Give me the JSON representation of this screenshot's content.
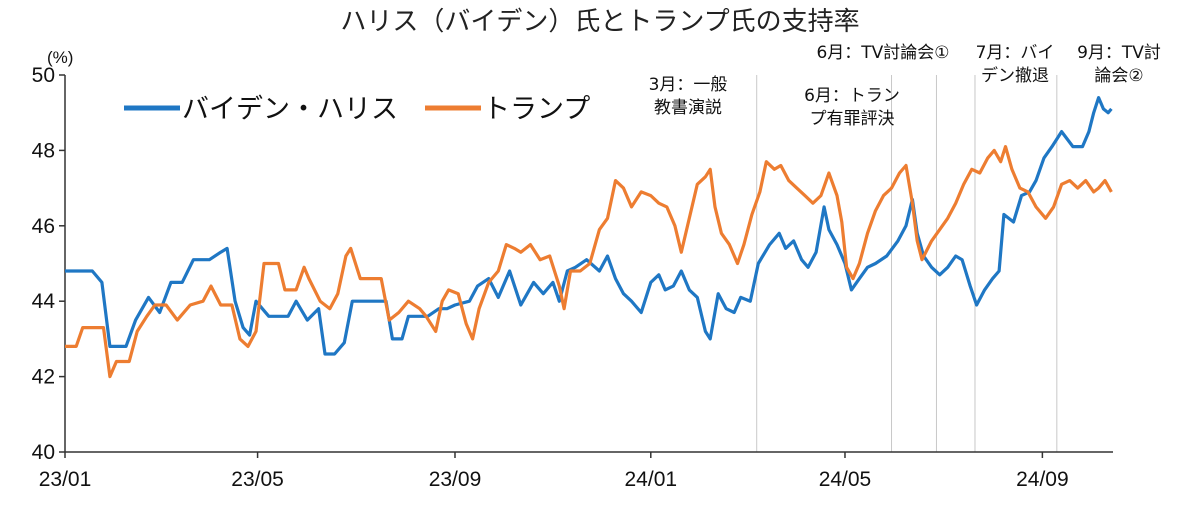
{
  "chart_data": {
    "type": "line",
    "title": "ハリス（バイデン）氏とトランプ氏の支持率",
    "ylabel": "(%)",
    "xlabel": "",
    "ylim": [
      40,
      50
    ],
    "yticks": [
      "40",
      "42",
      "44",
      "46",
      "48",
      "50"
    ],
    "xlim": [
      "2023-01-01",
      "2024-10-15"
    ],
    "xticks": [
      {
        "date": "2023-01-01",
        "label": "23/01"
      },
      {
        "date": "2023-05-01",
        "label": "23/05"
      },
      {
        "date": "2023-09-01",
        "label": "23/09"
      },
      {
        "date": "2024-01-01",
        "label": "24/01"
      },
      {
        "date": "2024-05-01",
        "label": "24/05"
      },
      {
        "date": "2024-09-01",
        "label": "24/09"
      }
    ],
    "grid": false,
    "legend": "top-left",
    "series": [
      {
        "name": "バイデン・ハリス",
        "color": "#1f77c4",
        "points": [
          [
            "2023-01-01",
            44.8
          ],
          [
            "2023-01-18",
            44.8
          ],
          [
            "2023-01-24",
            44.5
          ],
          [
            "2023-01-29",
            42.8
          ],
          [
            "2023-02-08",
            42.8
          ],
          [
            "2023-02-14",
            43.5
          ],
          [
            "2023-02-22",
            44.1
          ],
          [
            "2023-03-01",
            43.7
          ],
          [
            "2023-03-08",
            44.5
          ],
          [
            "2023-03-15",
            44.5
          ],
          [
            "2023-03-22",
            45.1
          ],
          [
            "2023-04-01",
            45.1
          ],
          [
            "2023-04-08",
            45.3
          ],
          [
            "2023-04-12",
            45.4
          ],
          [
            "2023-04-17",
            44.0
          ],
          [
            "2023-04-22",
            43.3
          ],
          [
            "2023-04-26",
            43.1
          ],
          [
            "2023-04-30",
            44.0
          ],
          [
            "2023-05-08",
            43.6
          ],
          [
            "2023-05-20",
            43.6
          ],
          [
            "2023-05-25",
            44.0
          ],
          [
            "2023-06-01",
            43.5
          ],
          [
            "2023-06-08",
            43.8
          ],
          [
            "2023-06-12",
            42.6
          ],
          [
            "2023-06-18",
            42.6
          ],
          [
            "2023-06-24",
            42.9
          ],
          [
            "2023-06-29",
            44.0
          ],
          [
            "2023-07-10",
            44.0
          ],
          [
            "2023-07-20",
            44.0
          ],
          [
            "2023-07-24",
            43.0
          ],
          [
            "2023-07-30",
            43.0
          ],
          [
            "2023-08-03",
            43.6
          ],
          [
            "2023-08-15",
            43.6
          ],
          [
            "2023-08-22",
            43.8
          ],
          [
            "2023-08-27",
            43.8
          ],
          [
            "2023-09-01",
            43.9
          ],
          [
            "2023-09-10",
            44.0
          ],
          [
            "2023-09-15",
            44.4
          ],
          [
            "2023-09-22",
            44.6
          ],
          [
            "2023-09-28",
            44.1
          ],
          [
            "2023-10-05",
            44.8
          ],
          [
            "2023-10-12",
            43.9
          ],
          [
            "2023-10-20",
            44.5
          ],
          [
            "2023-10-26",
            44.2
          ],
          [
            "2023-11-01",
            44.5
          ],
          [
            "2023-11-05",
            44.0
          ],
          [
            "2023-11-10",
            44.8
          ],
          [
            "2023-11-15",
            44.9
          ],
          [
            "2023-11-22",
            45.1
          ],
          [
            "2023-11-30",
            44.8
          ],
          [
            "2023-12-05",
            45.2
          ],
          [
            "2023-12-10",
            44.6
          ],
          [
            "2023-12-15",
            44.2
          ],
          [
            "2023-12-20",
            44.0
          ],
          [
            "2023-12-26",
            43.7
          ],
          [
            "2024-01-01",
            44.5
          ],
          [
            "2024-01-06",
            44.7
          ],
          [
            "2024-01-10",
            44.3
          ],
          [
            "2024-01-15",
            44.4
          ],
          [
            "2024-01-20",
            44.8
          ],
          [
            "2024-01-25",
            44.3
          ],
          [
            "2024-01-30",
            44.1
          ],
          [
            "2024-02-04",
            43.2
          ],
          [
            "2024-02-07",
            43.0
          ],
          [
            "2024-02-12",
            44.2
          ],
          [
            "2024-02-17",
            43.8
          ],
          [
            "2024-02-22",
            43.7
          ],
          [
            "2024-02-26",
            44.1
          ],
          [
            "2024-03-03",
            44.0
          ],
          [
            "2024-03-08",
            45.0
          ],
          [
            "2024-03-15",
            45.5
          ],
          [
            "2024-03-21",
            45.8
          ],
          [
            "2024-03-25",
            45.4
          ],
          [
            "2024-03-30",
            45.6
          ],
          [
            "2024-04-04",
            45.1
          ],
          [
            "2024-04-08",
            44.9
          ],
          [
            "2024-04-13",
            45.3
          ],
          [
            "2024-04-18",
            46.5
          ],
          [
            "2024-04-21",
            45.9
          ],
          [
            "2024-04-26",
            45.5
          ],
          [
            "2024-05-01",
            45.0
          ],
          [
            "2024-05-05",
            44.3
          ],
          [
            "2024-05-10",
            44.6
          ],
          [
            "2024-05-15",
            44.9
          ],
          [
            "2024-05-20",
            45.0
          ],
          [
            "2024-05-27",
            45.2
          ],
          [
            "2024-06-03",
            45.6
          ],
          [
            "2024-06-08",
            46.0
          ],
          [
            "2024-06-12",
            46.7
          ],
          [
            "2024-06-15",
            45.8
          ],
          [
            "2024-06-19",
            45.2
          ],
          [
            "2024-06-24",
            44.9
          ],
          [
            "2024-06-29",
            44.7
          ],
          [
            "2024-07-04",
            44.9
          ],
          [
            "2024-07-09",
            45.2
          ],
          [
            "2024-07-13",
            45.1
          ],
          [
            "2024-07-18",
            44.4
          ],
          [
            "2024-07-22",
            43.9
          ],
          [
            "2024-07-27",
            44.3
          ],
          [
            "2024-08-01",
            44.6
          ],
          [
            "2024-08-05",
            44.8
          ],
          [
            "2024-08-08",
            46.3
          ],
          [
            "2024-08-14",
            46.1
          ],
          [
            "2024-08-19",
            46.8
          ],
          [
            "2024-08-24",
            46.9
          ],
          [
            "2024-08-28",
            47.2
          ],
          [
            "2024-09-02",
            47.8
          ],
          [
            "2024-09-07",
            48.1
          ],
          [
            "2024-09-13",
            48.5
          ],
          [
            "2024-09-20",
            48.1
          ],
          [
            "2024-09-26",
            48.1
          ],
          [
            "2024-09-30",
            48.5
          ],
          [
            "2024-10-03",
            49.0
          ],
          [
            "2024-10-06",
            49.4
          ],
          [
            "2024-10-09",
            49.1
          ],
          [
            "2024-10-12",
            49.0
          ],
          [
            "2024-10-14",
            49.1
          ]
        ]
      },
      {
        "name": "トランプ",
        "color": "#ed7d31",
        "points": [
          [
            "2023-01-01",
            42.8
          ],
          [
            "2023-01-08",
            42.8
          ],
          [
            "2023-01-12",
            43.3
          ],
          [
            "2023-01-25",
            43.3
          ],
          [
            "2023-01-29",
            42.0
          ],
          [
            "2023-02-02",
            42.4
          ],
          [
            "2023-02-10",
            42.4
          ],
          [
            "2023-02-15",
            43.2
          ],
          [
            "2023-02-21",
            43.6
          ],
          [
            "2023-02-26",
            43.9
          ],
          [
            "2023-03-05",
            43.9
          ],
          [
            "2023-03-12",
            43.5
          ],
          [
            "2023-03-20",
            43.9
          ],
          [
            "2023-03-28",
            44.0
          ],
          [
            "2023-04-02",
            44.4
          ],
          [
            "2023-04-08",
            43.9
          ],
          [
            "2023-04-15",
            43.9
          ],
          [
            "2023-04-20",
            43.0
          ],
          [
            "2023-04-25",
            42.8
          ],
          [
            "2023-04-30",
            43.2
          ],
          [
            "2023-05-05",
            45.0
          ],
          [
            "2023-05-14",
            45.0
          ],
          [
            "2023-05-18",
            44.3
          ],
          [
            "2023-05-25",
            44.3
          ],
          [
            "2023-05-30",
            44.9
          ],
          [
            "2023-06-02",
            44.6
          ],
          [
            "2023-06-09",
            44.0
          ],
          [
            "2023-06-15",
            43.8
          ],
          [
            "2023-06-20",
            44.2
          ],
          [
            "2023-06-25",
            45.2
          ],
          [
            "2023-06-28",
            45.4
          ],
          [
            "2023-07-04",
            44.6
          ],
          [
            "2023-07-12",
            44.6
          ],
          [
            "2023-07-17",
            44.6
          ],
          [
            "2023-07-22",
            43.5
          ],
          [
            "2023-07-28",
            43.7
          ],
          [
            "2023-08-03",
            44.0
          ],
          [
            "2023-08-10",
            43.8
          ],
          [
            "2023-08-14",
            43.6
          ],
          [
            "2023-08-20",
            43.2
          ],
          [
            "2023-08-24",
            44.0
          ],
          [
            "2023-08-28",
            44.3
          ],
          [
            "2023-09-03",
            44.2
          ],
          [
            "2023-09-08",
            43.4
          ],
          [
            "2023-09-12",
            43.0
          ],
          [
            "2023-09-16",
            43.8
          ],
          [
            "2023-09-22",
            44.5
          ],
          [
            "2023-09-28",
            44.8
          ],
          [
            "2023-10-03",
            45.5
          ],
          [
            "2023-10-08",
            45.4
          ],
          [
            "2023-10-12",
            45.3
          ],
          [
            "2023-10-18",
            45.5
          ],
          [
            "2023-10-24",
            45.1
          ],
          [
            "2023-10-30",
            45.2
          ],
          [
            "2023-11-05",
            44.4
          ],
          [
            "2023-11-08",
            43.8
          ],
          [
            "2023-11-12",
            44.8
          ],
          [
            "2023-11-18",
            44.8
          ],
          [
            "2023-11-24",
            45.0
          ],
          [
            "2023-11-30",
            45.9
          ],
          [
            "2023-12-05",
            46.2
          ],
          [
            "2023-12-10",
            47.2
          ],
          [
            "2023-12-15",
            47.0
          ],
          [
            "2023-12-20",
            46.5
          ],
          [
            "2023-12-26",
            46.9
          ],
          [
            "2024-01-01",
            46.8
          ],
          [
            "2024-01-06",
            46.6
          ],
          [
            "2024-01-11",
            46.5
          ],
          [
            "2024-01-16",
            46.0
          ],
          [
            "2024-01-20",
            45.3
          ],
          [
            "2024-01-25",
            46.2
          ],
          [
            "2024-01-30",
            47.1
          ],
          [
            "2024-02-04",
            47.3
          ],
          [
            "2024-02-07",
            47.5
          ],
          [
            "2024-02-10",
            46.5
          ],
          [
            "2024-02-14",
            45.8
          ],
          [
            "2024-02-19",
            45.5
          ],
          [
            "2024-02-24",
            45.0
          ],
          [
            "2024-02-28",
            45.5
          ],
          [
            "2024-03-04",
            46.3
          ],
          [
            "2024-03-09",
            46.9
          ],
          [
            "2024-03-13",
            47.7
          ],
          [
            "2024-03-18",
            47.5
          ],
          [
            "2024-03-22",
            47.6
          ],
          [
            "2024-03-27",
            47.2
          ],
          [
            "2024-04-01",
            47.0
          ],
          [
            "2024-04-06",
            46.8
          ],
          [
            "2024-04-11",
            46.6
          ],
          [
            "2024-04-16",
            46.8
          ],
          [
            "2024-04-21",
            47.4
          ],
          [
            "2024-04-26",
            46.8
          ],
          [
            "2024-04-29",
            46.1
          ],
          [
            "2024-05-02",
            44.9
          ],
          [
            "2024-05-06",
            44.6
          ],
          [
            "2024-05-10",
            45.0
          ],
          [
            "2024-05-15",
            45.8
          ],
          [
            "2024-05-20",
            46.4
          ],
          [
            "2024-05-25",
            46.8
          ],
          [
            "2024-05-30",
            47.0
          ],
          [
            "2024-06-04",
            47.4
          ],
          [
            "2024-06-08",
            47.6
          ],
          [
            "2024-06-12",
            46.6
          ],
          [
            "2024-06-15",
            45.6
          ],
          [
            "2024-06-18",
            45.1
          ],
          [
            "2024-06-24",
            45.6
          ],
          [
            "2024-06-29",
            45.9
          ],
          [
            "2024-07-04",
            46.2
          ],
          [
            "2024-07-09",
            46.6
          ],
          [
            "2024-07-14",
            47.1
          ],
          [
            "2024-07-19",
            47.5
          ],
          [
            "2024-07-24",
            47.4
          ],
          [
            "2024-07-29",
            47.8
          ],
          [
            "2024-08-02",
            48.0
          ],
          [
            "2024-08-06",
            47.7
          ],
          [
            "2024-08-09",
            48.1
          ],
          [
            "2024-08-13",
            47.5
          ],
          [
            "2024-08-18",
            47.0
          ],
          [
            "2024-08-23",
            46.9
          ],
          [
            "2024-08-28",
            46.5
          ],
          [
            "2024-09-03",
            46.2
          ],
          [
            "2024-09-08",
            46.5
          ],
          [
            "2024-09-13",
            47.1
          ],
          [
            "2024-09-18",
            47.2
          ],
          [
            "2024-09-23",
            47.0
          ],
          [
            "2024-09-28",
            47.2
          ],
          [
            "2024-10-03",
            46.9
          ],
          [
            "2024-10-06",
            47.0
          ],
          [
            "2024-10-10",
            47.2
          ],
          [
            "2024-10-14",
            46.9
          ]
        ]
      }
    ],
    "annotations": [
      {
        "date": "2024-03-07",
        "lines": [
          "3月：一般",
          "教書演説"
        ],
        "marker_line": true
      },
      {
        "date": "2024-05-30",
        "lines": [
          "6月：トラン",
          "プ有罪評決"
        ],
        "marker_line": true
      },
      {
        "date": "2024-06-27",
        "lines": [
          "6月：TV討論会①"
        ],
        "marker_line": true
      },
      {
        "date": "2024-07-21",
        "lines": [
          "7月：バイ",
          "デン撤退"
        ],
        "marker_line": true
      },
      {
        "date": "2024-09-10",
        "lines": [
          "9月：TV討",
          "論会②"
        ],
        "marker_line": true
      }
    ]
  }
}
